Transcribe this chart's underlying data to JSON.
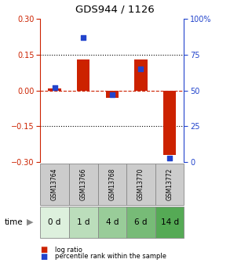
{
  "title": "GDS944 / 1126",
  "samples": [
    "GSM13764",
    "GSM13766",
    "GSM13768",
    "GSM13770",
    "GSM13772"
  ],
  "time_labels": [
    "0 d",
    "1 d",
    "4 d",
    "6 d",
    "14 d"
  ],
  "log_ratio": [
    0.01,
    0.13,
    -0.03,
    0.13,
    -0.27
  ],
  "percentile_rank": [
    52,
    87,
    47,
    65,
    3
  ],
  "ylim_left": [
    -0.3,
    0.3
  ],
  "ylim_right": [
    0,
    100
  ],
  "yticks_left": [
    -0.3,
    -0.15,
    0,
    0.15,
    0.3
  ],
  "yticks_right": [
    0,
    25,
    50,
    75,
    100
  ],
  "bar_color": "#cc2200",
  "dot_color": "#2244cc",
  "hline_color": "#cc2200",
  "dotted_color": "#000000",
  "bar_width": 0.45,
  "gsm_row_color": "#cccccc",
  "time_row_colors": [
    "#ddf0dd",
    "#bbddbb",
    "#99cc99",
    "#77bb77",
    "#55aa55"
  ],
  "left_axis_color": "#cc2200",
  "right_axis_color": "#2244cc",
  "legend_bar_label": "log ratio",
  "legend_dot_label": "percentile rank within the sample"
}
